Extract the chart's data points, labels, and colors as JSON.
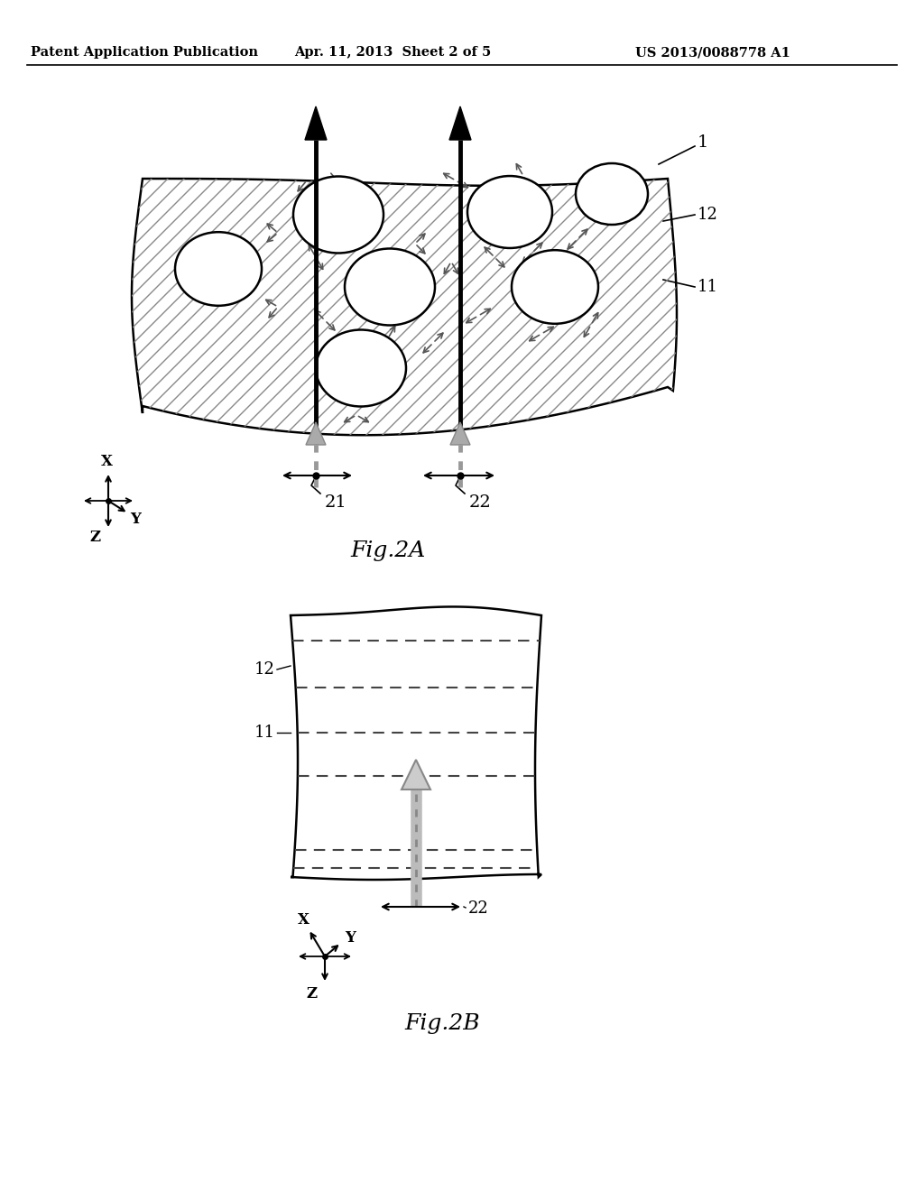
{
  "header_left": "Patent Application Publication",
  "header_center": "Apr. 11, 2013  Sheet 2 of 5",
  "header_right": "US 2013/0088778 A1",
  "fig2a_label": "Fig.2A",
  "fig2b_label": "Fig.2B",
  "bg_color": "#ffffff",
  "line_color": "#000000",
  "label_1": "1",
  "label_11": "11",
  "label_12": "12",
  "label_21": "21",
  "label_22": "22"
}
